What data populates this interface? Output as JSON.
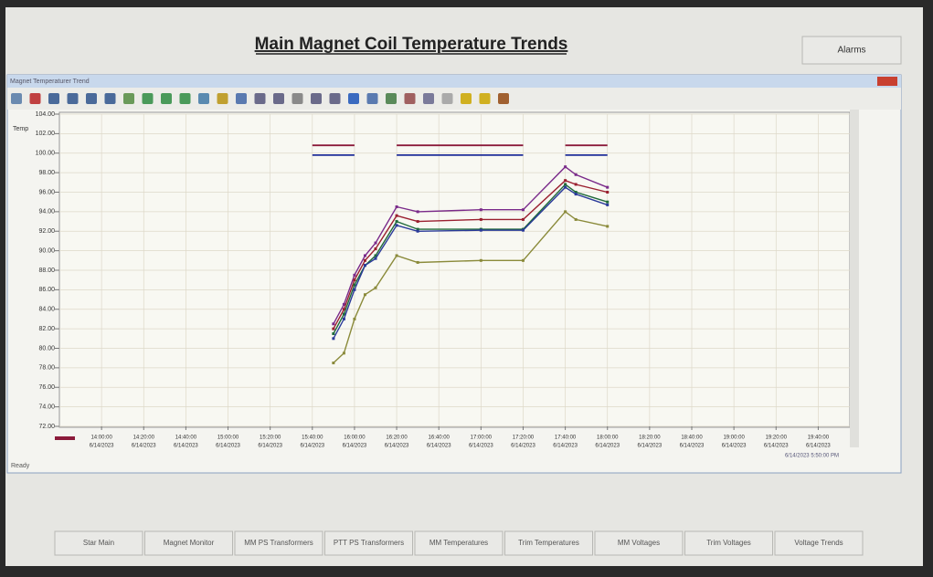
{
  "header": {
    "title": "Main Magnet Coil Temperature Trends",
    "alarms_button": "Alarms"
  },
  "window": {
    "title": "Magnet Temperaturer Trend",
    "status": "Ready",
    "timestamp": "6/14/2023 5:50:00 PM"
  },
  "nav_buttons": [
    "Star Main",
    "Magnet Monitor",
    "MM PS Transformers",
    "PTT PS Transformers",
    "MM Temperatures",
    "Trim Temperatures",
    "MM Voltages",
    "Trim Voltages",
    "Voltage Trends"
  ],
  "chart_data": {
    "type": "line",
    "y_label": "Temp",
    "x": [
      "15:50:00",
      "15:55:00",
      "16:00:00",
      "16:05:00",
      "16:10:00",
      "16:20:00",
      "16:30:00",
      "17:00:00",
      "17:20:00",
      "17:40:00",
      "17:45:00",
      "18:00:00"
    ],
    "x_date": "6/14/2023",
    "xlim": [
      "13:40:00",
      "19:55:00"
    ],
    "xticks": [
      "14:00:00",
      "14:20:00",
      "14:40:00",
      "15:00:00",
      "15:20:00",
      "15:40:00",
      "16:00:00",
      "16:20:00",
      "16:40:00",
      "17:00:00",
      "17:20:00",
      "17:40:00",
      "18:00:00",
      "18:20:00",
      "18:40:00",
      "19:00:00",
      "19:20:00",
      "19:40:00"
    ],
    "ylim": [
      72,
      104
    ],
    "yticks": [
      {
        "value": 104,
        "label": "104.00"
      },
      {
        "value": 102,
        "label": "102.00"
      },
      {
        "value": 100,
        "label": "100.00"
      },
      {
        "value": 98,
        "label": "98.00"
      },
      {
        "value": 96,
        "label": "96.00"
      },
      {
        "value": 94,
        "label": "94.00"
      },
      {
        "value": 92,
        "label": "92.00"
      },
      {
        "value": 90,
        "label": "90.00"
      },
      {
        "value": 88,
        "label": "88.00"
      },
      {
        "value": 86,
        "label": "86.00"
      },
      {
        "value": 84,
        "label": "84.00"
      },
      {
        "value": 82,
        "label": "82.00"
      },
      {
        "value": 80,
        "label": "80.00"
      },
      {
        "value": 78,
        "label": "78.00"
      },
      {
        "value": 76,
        "label": "76.00"
      },
      {
        "value": 74,
        "label": "74.00"
      },
      {
        "value": 72,
        "label": "72.00"
      }
    ],
    "grid": true,
    "series": [
      {
        "color": "#8b1a3a",
        "x": [
          "15:40:00",
          "16:00:00",
          "16:10:00",
          "16:20:00",
          "17:20:00",
          "17:30:00",
          "17:40:00",
          "18:00:00"
        ],
        "values": [
          100.8,
          100.8,
          null,
          100.8,
          100.8,
          null,
          100.8,
          100.8
        ]
      },
      {
        "color": "#1f2f9a",
        "x": [
          "15:40:00",
          "16:00:00",
          "16:10:00",
          "16:20:00",
          "17:20:00",
          "17:30:00",
          "17:40:00",
          "18:00:00"
        ],
        "values": [
          99.8,
          99.8,
          null,
          99.8,
          99.8,
          null,
          99.8,
          99.8
        ]
      },
      {
        "color": "#7a2a8a",
        "values": [
          82.5,
          84.5,
          87.5,
          89.5,
          90.8,
          94.5,
          94,
          94.2,
          94.2,
          98.6,
          97.8,
          96.5
        ]
      },
      {
        "color": "#9a1f2f",
        "values": [
          82,
          84,
          87,
          89,
          90.2,
          93.6,
          93,
          93.2,
          93.2,
          97.2,
          96.8,
          96
        ]
      },
      {
        "color": "#1f6a3a",
        "values": [
          81.5,
          83.5,
          86.5,
          88.5,
          89.5,
          93,
          92.2,
          92.2,
          92.2,
          96.8,
          96,
          95
        ]
      },
      {
        "color": "#2a3a9a",
        "values": [
          81,
          83,
          86,
          88.5,
          89.2,
          92.6,
          92,
          92.1,
          92.1,
          96.5,
          95.8,
          94.7
        ]
      },
      {
        "color": "#8a8a3a",
        "values": [
          78.5,
          79.5,
          83,
          85.5,
          86.2,
          89.5,
          88.8,
          89,
          89,
          94,
          93.2,
          92.5
        ]
      }
    ]
  }
}
